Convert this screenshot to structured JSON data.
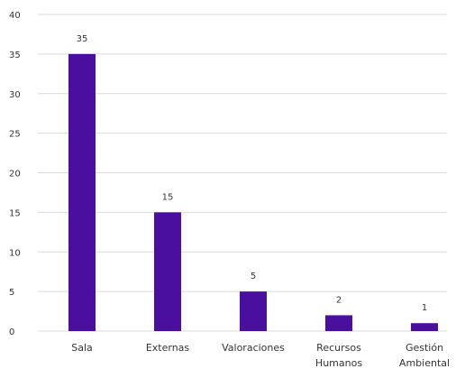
{
  "chart_data": {
    "type": "bar",
    "categories": [
      "Sala",
      "Externas",
      "Valoraciones",
      "Recursos Humanos",
      "Gestión Ambiental"
    ],
    "category_label_lines": [
      [
        "Sala"
      ],
      [
        "Externas"
      ],
      [
        "Valoraciones"
      ],
      [
        "Recursos",
        "Humanos"
      ],
      [
        "Gestión",
        "Ambiental"
      ]
    ],
    "values": [
      35,
      15,
      5,
      2,
      1
    ],
    "value_labels": [
      "35",
      "15",
      "5",
      "2",
      "1"
    ],
    "ylim": [
      0,
      40
    ],
    "yticks": [
      0,
      5,
      10,
      15,
      20,
      25,
      30,
      35,
      40
    ],
    "ytick_labels": [
      "0",
      "5",
      "10",
      "15",
      "20",
      "25",
      "30",
      "35",
      "40"
    ],
    "grid": true,
    "legend": false,
    "title": "",
    "xlabel": "",
    "ylabel": "",
    "colors": {
      "bar": "#4b0fa0",
      "grid": "#d9d9d9",
      "text": "#333333"
    }
  }
}
